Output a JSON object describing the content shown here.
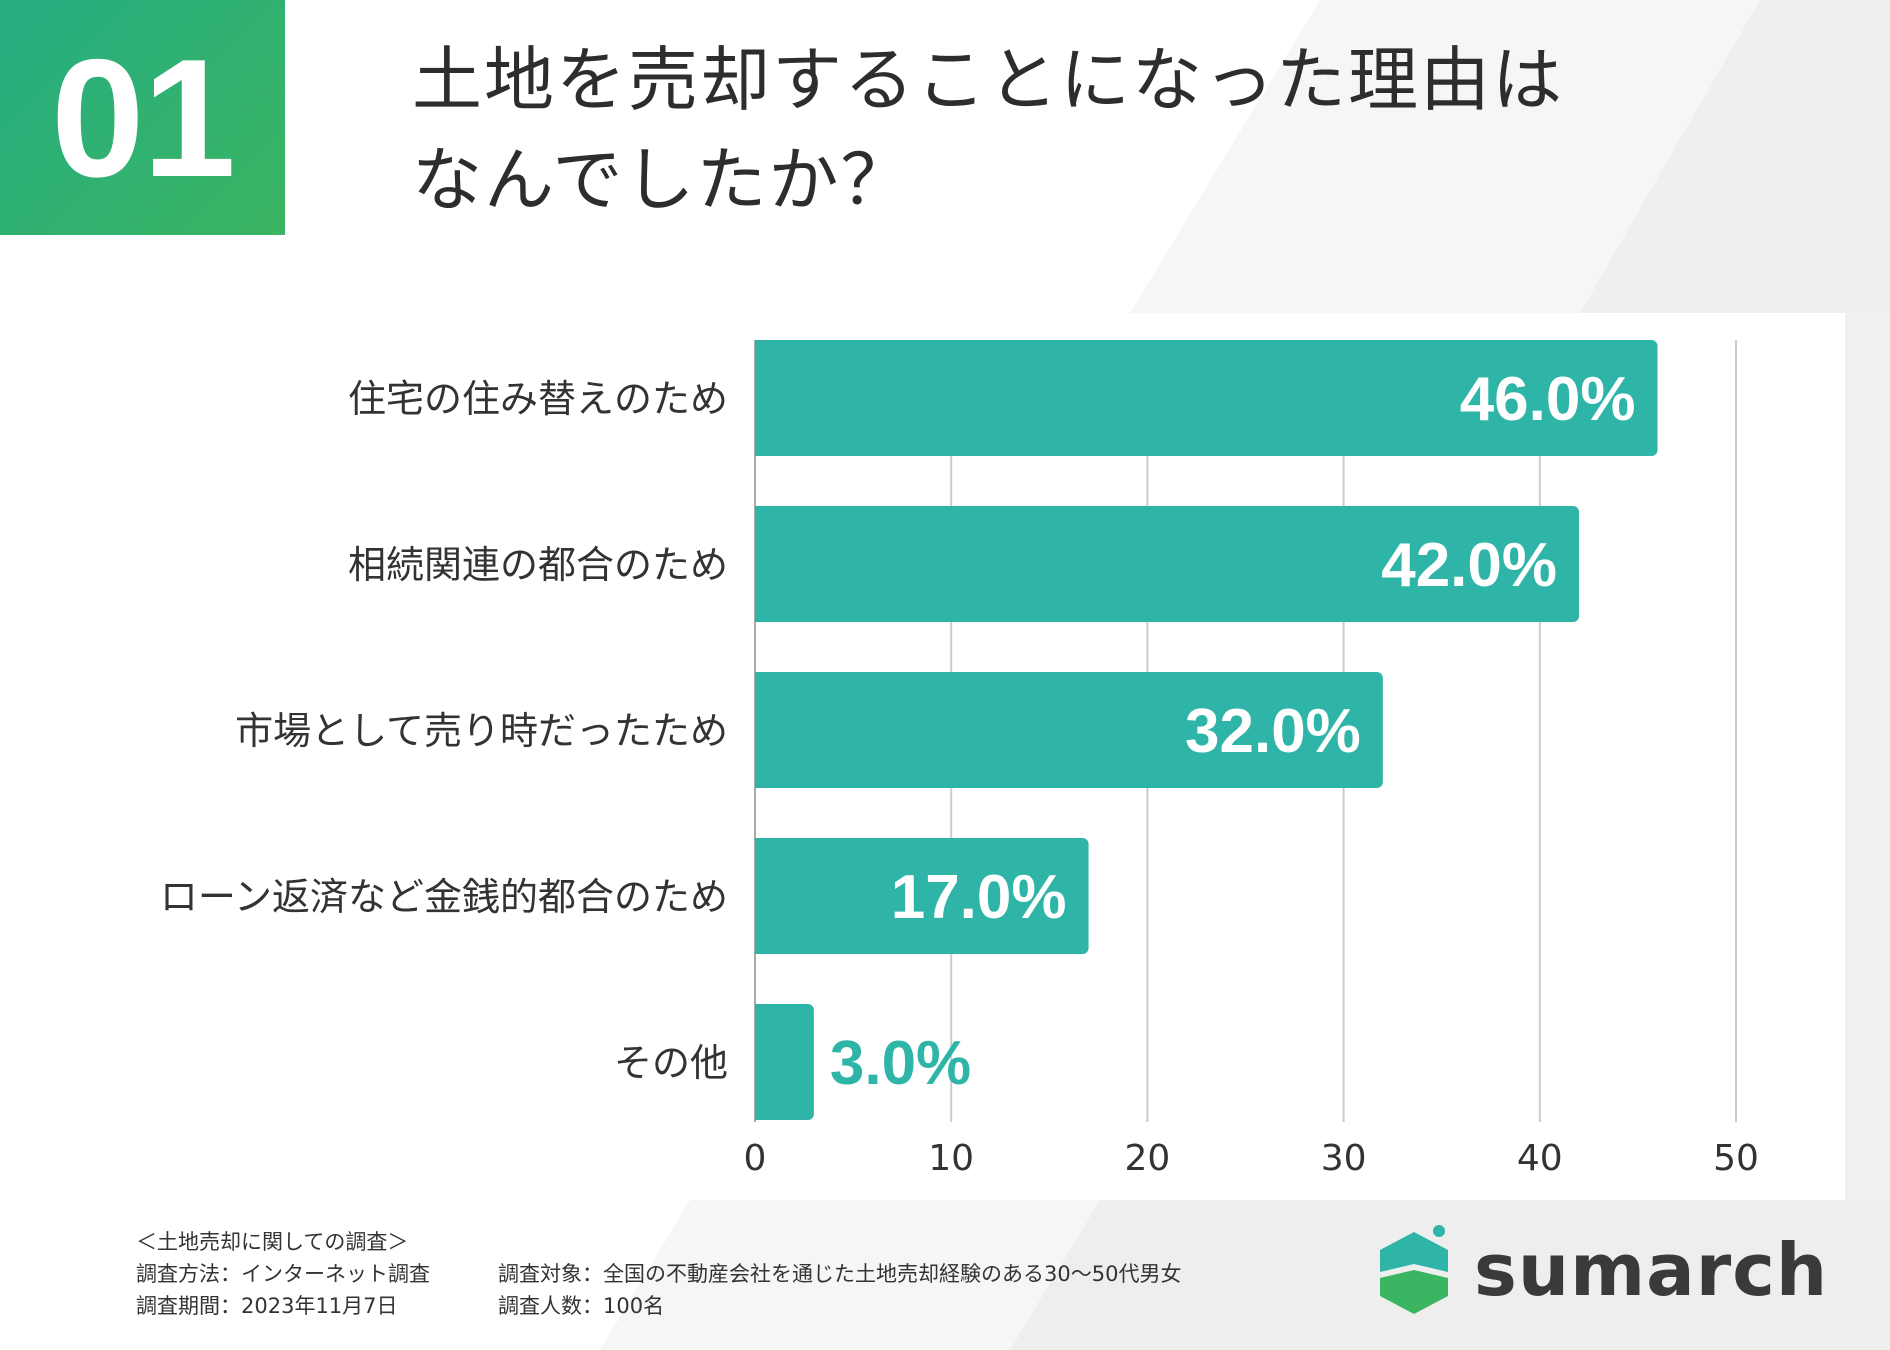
{
  "badge": {
    "number": "01"
  },
  "title": {
    "line1": "土地を売却することになった理由は",
    "line2": "なんでしたか？"
  },
  "chart_data": {
    "type": "bar",
    "orientation": "horizontal",
    "categories": [
      "住宅の住み替えのため",
      "相続関連の都合のため",
      "市場として売り時だったため",
      "ローン返済など金銭的都合のため",
      "その他"
    ],
    "values": [
      46.0,
      42.0,
      32.0,
      17.0,
      3.0
    ],
    "value_labels": [
      "46.0%",
      "42.0%",
      "32.0%",
      "17.0%",
      "3.0%"
    ],
    "xlim": [
      0,
      50
    ],
    "x_ticks": [
      "0",
      "10",
      "20",
      "30",
      "40",
      "50"
    ],
    "grid": true,
    "bar_color": "#2eb5a7",
    "label_color_inside": "#ffffff",
    "label_color_outside": "#2eb5a7"
  },
  "footer": {
    "survey_title": "＜土地売却に関しての調査＞",
    "method": "調査方法：インターネット調査",
    "target": "調査対象：全国の不動産会社を通じた土地売却経験のある30〜50代男女",
    "period": "調査期間：2023年11月7日",
    "count": "調査人数：100名"
  },
  "logo": {
    "text": "sumarch",
    "icon": "house-shield-icon"
  }
}
